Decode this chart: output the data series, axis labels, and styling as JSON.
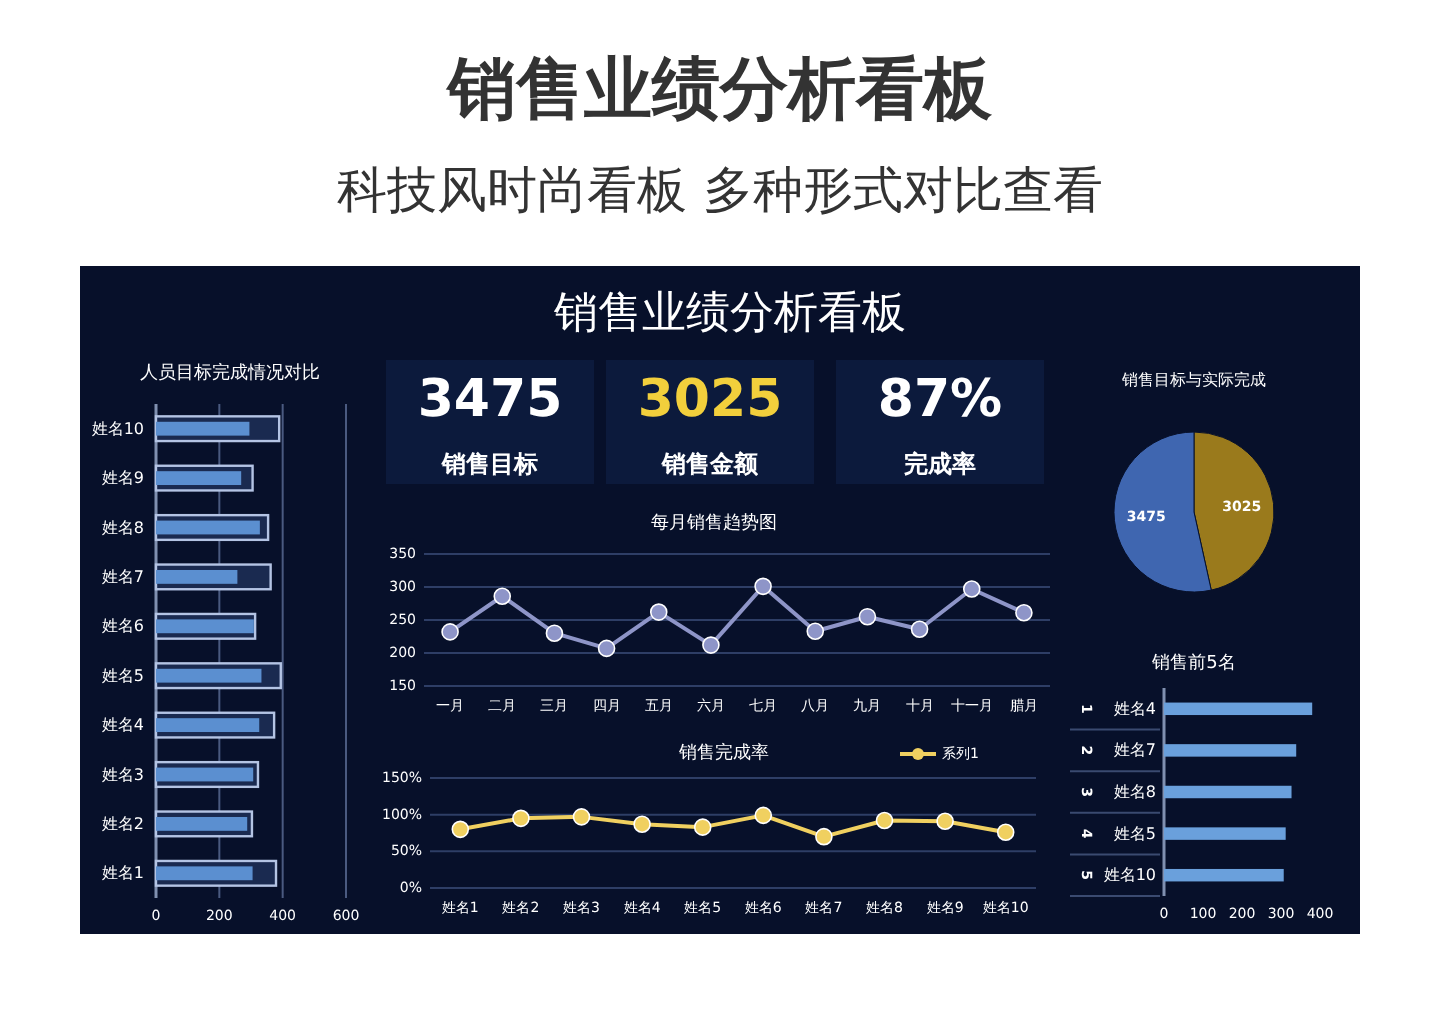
{
  "chart_data": [
    {
      "type": "other",
      "title": "销售业绩分析看板",
      "subtitle": "科技风时尚看板 多种形式对比查看",
      "annotations": [
        "销售业绩分析看板",
        "3475",
        "销售目标",
        "3025",
        "销售金额",
        "87%",
        "完成率"
      ]
    },
    {
      "type": "bar",
      "orientation": "horizontal",
      "title": "人员目标完成情况对比",
      "categories": [
        "姓名10",
        "姓名9",
        "姓名8",
        "姓名7",
        "姓名6",
        "姓名5",
        "姓名4",
        "姓名3",
        "姓名2",
        "姓名1"
      ],
      "series": [
        {
          "color": "#1a2a50",
          "values": [
            389,
            305,
            354,
            362,
            313,
            394,
            373,
            322,
            303,
            379
          ]
        },
        {
          "color": "#5b8fd0",
          "values": [
            295,
            269,
            328,
            257,
            309,
            333,
            326,
            307,
            288,
            305
          ]
        }
      ],
      "xlim": [
        0,
        600
      ],
      "xticks": [
        0,
        200,
        400,
        600
      ],
      "grid": "x"
    },
    {
      "type": "line",
      "title": "每月销售趋势图",
      "categories": [
        "一月",
        "二月",
        "三月",
        "四月",
        "五月",
        "六月",
        "七月",
        "八月",
        "九月",
        "十月",
        "十一月",
        "腊月"
      ],
      "series": [
        {
          "color": "#8e95c8",
          "values": [
            232,
            286,
            230,
            207,
            262,
            212,
            301,
            233,
            255,
            236,
            297,
            261
          ]
        }
      ],
      "ylim": [
        150,
        350
      ],
      "yticks": [
        150,
        200,
        250,
        300,
        350
      ],
      "grid": "y",
      "marker": "circle",
      "line_style": "solid"
    },
    {
      "type": "line",
      "title": "销售完成率",
      "categories": [
        "姓名1",
        "姓名2",
        "姓名3",
        "姓名4",
        "姓名5",
        "姓名6",
        "姓名7",
        "姓名8",
        "姓名9",
        "姓名10"
      ],
      "series": [
        {
          "name": "系列1",
          "color": "#f0d060",
          "values": [
            80,
            95,
            97,
            87,
            83,
            99,
            70,
            92,
            91,
            76
          ]
        }
      ],
      "ylim": [
        0,
        150
      ],
      "yticks": [
        {
          "value": 0,
          "label": "0%"
        },
        {
          "value": 50,
          "label": "50%"
        },
        {
          "value": 100,
          "label": "100%"
        },
        {
          "value": 150,
          "label": "150%"
        }
      ],
      "grid": "y",
      "marker": "circle",
      "line_style": "solid",
      "legend": "top right"
    },
    {
      "type": "pie",
      "title": "销售目标与实际完成",
      "categories": [
        null,
        null
      ],
      "values": [
        3475,
        3025
      ],
      "colors": [
        "#3f66b0",
        "#9a7a1c"
      ],
      "data_labels": true
    },
    {
      "type": "bar",
      "orientation": "horizontal",
      "title": "销售前5名",
      "categories": [
        "姓名4",
        "姓名7",
        "姓名8",
        "姓名5",
        "姓名10"
      ],
      "series": [
        {
          "color": "#6aa0dc",
          "values": [
            380,
            339,
            327,
            312,
            307
          ]
        }
      ],
      "xlim": [
        0,
        400
      ],
      "xticks": [
        0,
        100,
        200,
        300,
        400
      ],
      "annotations": [
        "1",
        "2",
        "3",
        "4",
        "5"
      ]
    }
  ]
}
